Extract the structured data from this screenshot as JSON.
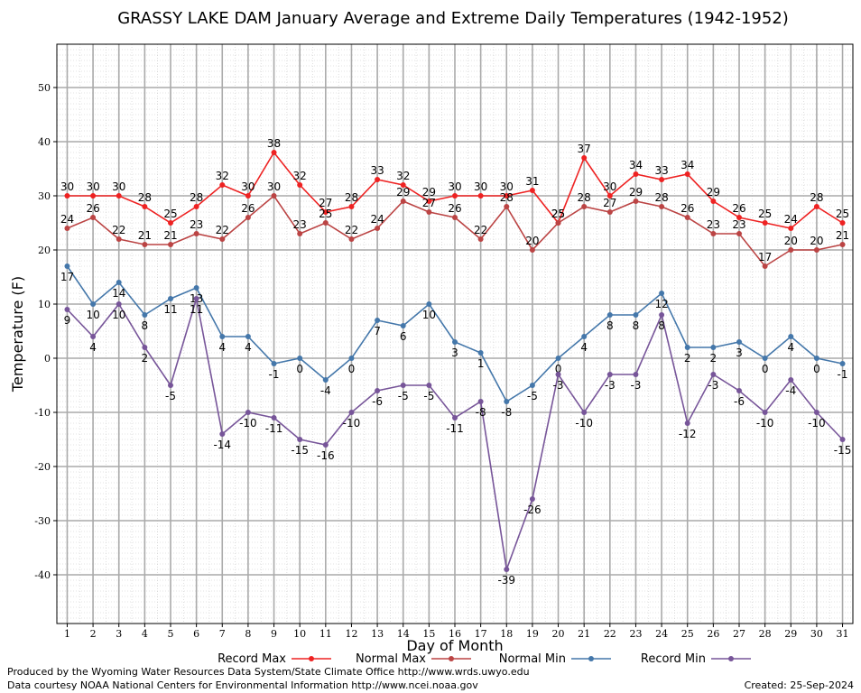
{
  "chart_data": {
    "type": "line",
    "title": "GRASSY LAKE DAM January Average and Extreme Daily Temperatures (1942-1952)",
    "xlabel": "Day of Month",
    "ylabel": "Temperature (F)",
    "ylim": [
      -49,
      58
    ],
    "xlim": [
      0.6,
      31.4
    ],
    "yticks": [
      -40,
      -30,
      -20,
      -10,
      0,
      10,
      20,
      30,
      40,
      50
    ],
    "x": [
      1,
      2,
      3,
      4,
      5,
      6,
      7,
      8,
      9,
      10,
      11,
      12,
      13,
      14,
      15,
      16,
      17,
      18,
      19,
      20,
      21,
      22,
      23,
      24,
      25,
      26,
      27,
      28,
      29,
      30,
      31
    ],
    "grid": true,
    "legend_position": "bottom",
    "series": [
      {
        "name": "Record Max",
        "color": "#ee2222",
        "label_offset": "above",
        "values": [
          30,
          30,
          30,
          28,
          25,
          28,
          32,
          30,
          38,
          32,
          27,
          28,
          33,
          32,
          29,
          30,
          30,
          30,
          31,
          25,
          37,
          30,
          34,
          33,
          34,
          29,
          26,
          25,
          24,
          28,
          25
        ]
      },
      {
        "name": "Normal Max",
        "color": "#bb4444",
        "label_offset": "above",
        "values": [
          24,
          26,
          22,
          21,
          21,
          23,
          22,
          26,
          30,
          23,
          25,
          22,
          24,
          29,
          27,
          26,
          22,
          28,
          20,
          25,
          28,
          27,
          29,
          28,
          26,
          23,
          23,
          17,
          20,
          20,
          21
        ]
      },
      {
        "name": "Normal Min",
        "color": "#4477aa",
        "label_offset": "below",
        "values": [
          17,
          10,
          14,
          8,
          11,
          13,
          4,
          4,
          -1,
          0,
          -4,
          0,
          7,
          6,
          10,
          3,
          1,
          -8,
          -5,
          0,
          4,
          8,
          8,
          12,
          2,
          2,
          3,
          0,
          4,
          0,
          -1
        ]
      },
      {
        "name": "Record Min",
        "color": "#775599",
        "label_offset": "below",
        "values": [
          9,
          4,
          10,
          2,
          -5,
          11,
          -14,
          -10,
          -11,
          -15,
          -16,
          -10,
          -6,
          -5,
          -5,
          -11,
          -8,
          -39,
          -26,
          -3,
          -10,
          -3,
          -3,
          8,
          -12,
          -3,
          -6,
          -10,
          -4,
          -10,
          -15
        ]
      }
    ]
  },
  "footer": {
    "produced_by": "Produced by the Wyoming Water Resources Data System/State Climate Office http://www.wrds.uwyo.edu",
    "courtesy": "Data courtesy NOAA National Centers for Environmental Information http://www.ncei.noaa.gov",
    "created": "Created:  25-Sep-2024"
  }
}
